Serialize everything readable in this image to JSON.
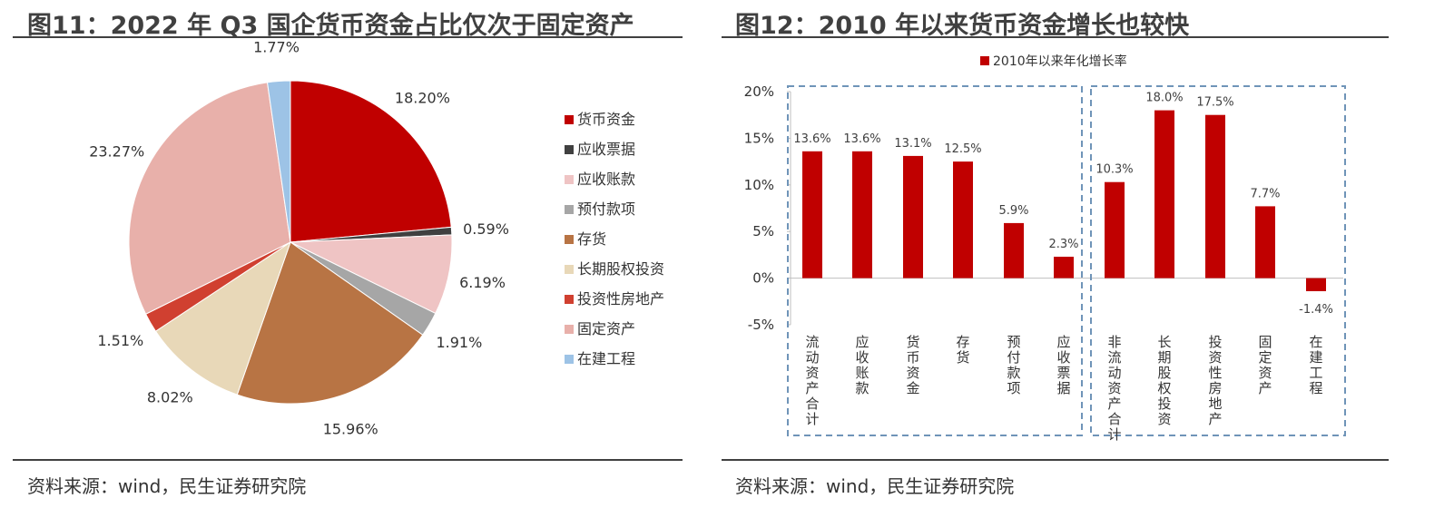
{
  "left": {
    "title": "图11：2022 年 Q3 国企货币资金占比仅次于固定资产",
    "source": "资料来源：wind，民生证券研究院"
  },
  "right": {
    "title": "图12：2010 年以来货币资金增长也较快",
    "source": "资料来源：wind，民生证券研究院"
  },
  "chart_data": [
    {
      "type": "pie",
      "start_angle_deg": 0,
      "direction": "clockwise",
      "categories": [
        "货币资金",
        "应收票据",
        "应收账款",
        "预付款项",
        "存货",
        "长期股权投资",
        "投资性房地产",
        "固定资产",
        "在建工程"
      ],
      "values": [
        18.2,
        0.59,
        6.19,
        1.91,
        15.96,
        8.02,
        1.51,
        23.27,
        1.77
      ],
      "data_labels": [
        "18.20%",
        "0.59%",
        "6.19%",
        "1.91%",
        "15.96%",
        "8.02%",
        "1.51%",
        "23.27%",
        "1.77%"
      ],
      "colors": [
        "#C00000",
        "#404040",
        "#EFC4C4",
        "#A6A6A6",
        "#B87444",
        "#E8D8B8",
        "#D04030",
        "#E8B0AA",
        "#9DC3E6"
      ],
      "legend_position": "right"
    },
    {
      "type": "bar",
      "legend": [
        "2010年以来年化增长率"
      ],
      "categories": [
        "流动资产合计",
        "应收账款",
        "货币资金",
        "存货",
        "预付款项",
        "应收票据",
        "非流动资产合计",
        "长期股权投资",
        "投资性房地产",
        "固定资产",
        "在建工程"
      ],
      "series": [
        {
          "name": "2010年以来年化增长率",
          "values": [
            13.6,
            13.6,
            13.1,
            12.5,
            5.9,
            2.3,
            10.3,
            18.0,
            17.5,
            7.7,
            -1.4
          ],
          "color": "#C00000"
        }
      ],
      "data_labels": [
        "13.6%",
        "13.6%",
        "13.1%",
        "12.5%",
        "5.9%",
        "2.3%",
        "10.3%",
        "18.0%",
        "17.5%",
        "7.7%",
        "-1.4%"
      ],
      "ylim": [
        -5,
        20
      ],
      "yticks": [
        "20%",
        "15%",
        "10%",
        "5%",
        "0%",
        "-5%"
      ],
      "ytick_values": [
        20,
        15,
        10,
        5,
        0,
        -5
      ],
      "groups": [
        [
          "流动资产合计",
          "应收账款",
          "货币资金",
          "存货",
          "预付款项",
          "应收票据"
        ],
        [
          "非流动资产合计",
          "长期股权投资",
          "投资性房地产",
          "固定资产",
          "在建工程"
        ]
      ],
      "grid": false
    }
  ]
}
